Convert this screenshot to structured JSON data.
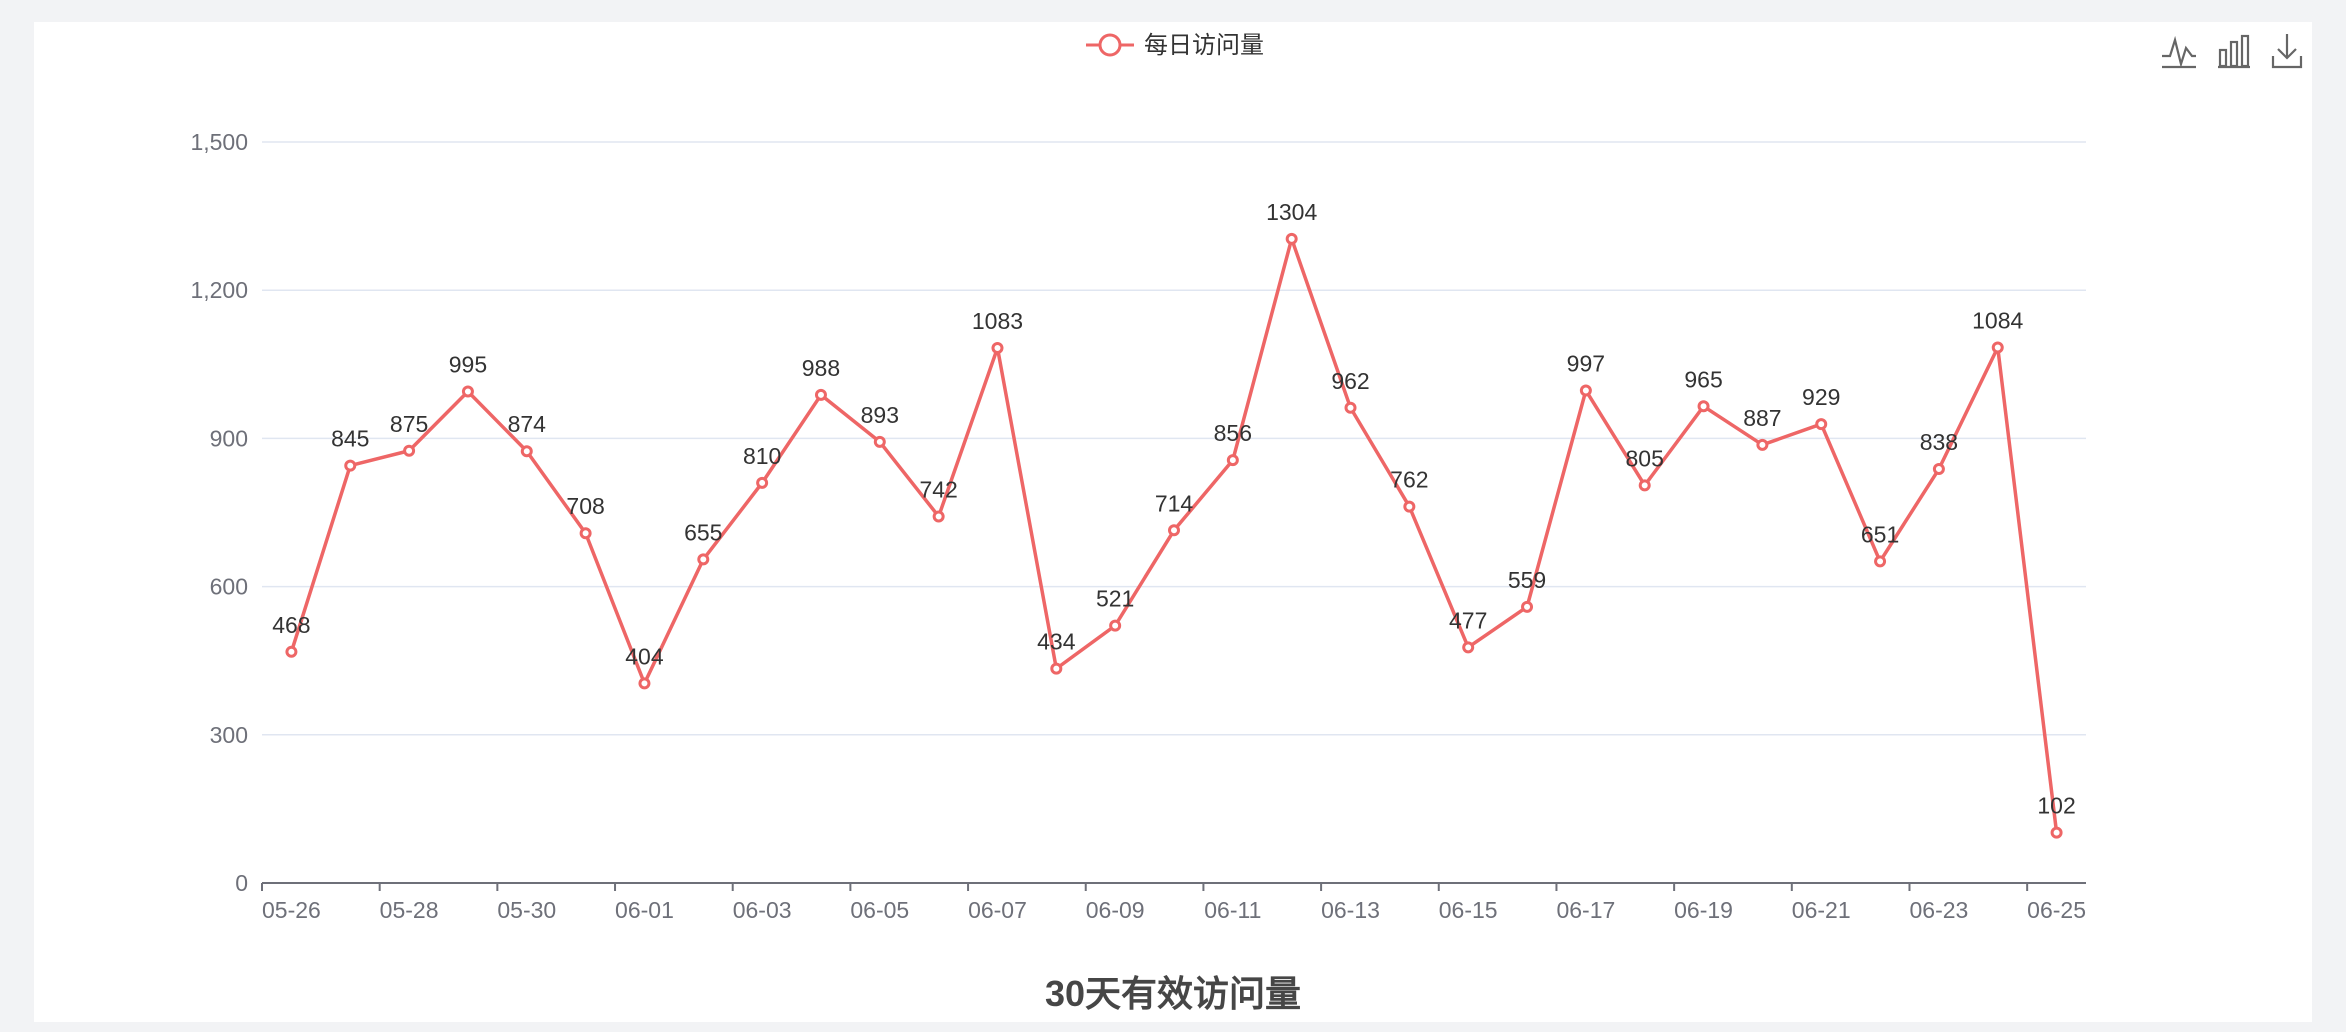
{
  "chart_data": {
    "type": "line",
    "title": "30天有效访问量",
    "legend": [
      "每日访问量"
    ],
    "legend_position": "top-center",
    "x": [
      "05-26",
      "05-27",
      "05-28",
      "05-29",
      "05-30",
      "05-31",
      "06-01",
      "06-02",
      "06-03",
      "06-04",
      "06-05",
      "06-06",
      "06-07",
      "06-08",
      "06-09",
      "06-10",
      "06-11",
      "06-12",
      "06-13",
      "06-14",
      "06-15",
      "06-16",
      "06-17",
      "06-18",
      "06-19",
      "06-20",
      "06-21",
      "06-22",
      "06-23",
      "06-24",
      "06-25"
    ],
    "x_tick_labels": [
      "05-26",
      "05-28",
      "05-30",
      "06-01",
      "06-03",
      "06-05",
      "06-07",
      "06-09",
      "06-11",
      "06-13",
      "06-15",
      "06-17",
      "06-19",
      "06-21",
      "06-23",
      "06-25"
    ],
    "y_tick_labels": [
      "0",
      "300",
      "600",
      "900",
      "1,200",
      "1,500"
    ],
    "ylim": [
      0,
      1500
    ],
    "grid": true,
    "series": [
      {
        "name": "每日访问量",
        "color": "#ee6666",
        "values": [
          468,
          845,
          875,
          995,
          874,
          708,
          404,
          655,
          810,
          988,
          893,
          742,
          1083,
          434,
          521,
          714,
          856,
          1304,
          962,
          762,
          477,
          559,
          997,
          805,
          965,
          887,
          929,
          651,
          838,
          1084,
          102
        ]
      }
    ]
  },
  "toolbox": {
    "icons": [
      "line-chart-icon",
      "bar-chart-icon",
      "download-icon"
    ]
  }
}
